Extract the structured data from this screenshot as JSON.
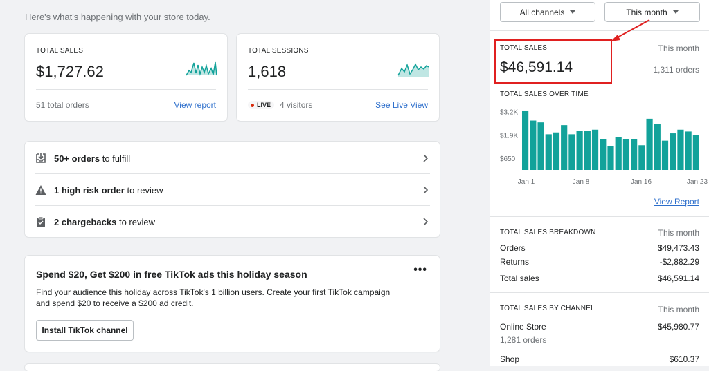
{
  "greeting": "Here's what's happening with your store today.",
  "colors": {
    "teal": "#12a29a",
    "link": "#2c6ecb",
    "highlight": "#e02020"
  },
  "cards": {
    "sales": {
      "label": "TOTAL SALES",
      "value": "$1,727.62",
      "foot": "51 total orders",
      "link": "View report"
    },
    "sessions": {
      "label": "TOTAL SESSIONS",
      "value": "1,618",
      "badge": "LIVE",
      "foot": "4 visitors",
      "link": "See Live View"
    }
  },
  "tasks": [
    {
      "icon": "download-box-icon",
      "bold": "50+ orders",
      "rest": " to fulfill"
    },
    {
      "icon": "warning-icon",
      "bold": "1 high risk order",
      "rest": " to review"
    },
    {
      "icon": "clipboard-icon",
      "bold": "2 chargebacks",
      "rest": " to review"
    }
  ],
  "promo": {
    "title": "Spend $20, Get $200 in free TikTok ads this holiday season",
    "desc": "Find your audience this holiday across TikTok's 1 billion users. Create your first TikTok campaign and spend $20 to receive a $200 ad credit.",
    "button": "Install TikTok channel",
    "more": "•••"
  },
  "panel": {
    "channels_dd": "All channels",
    "period_dd": "This month",
    "total_sales": {
      "label": "TOTAL SALES",
      "period": "This month",
      "value": "$46,591.14",
      "orders": "1,311 orders"
    },
    "over_time_label": "TOTAL SALES OVER TIME",
    "view_report": "View Report",
    "breakdown": {
      "label": "TOTAL SALES BREAKDOWN",
      "period": "This month",
      "rows": [
        {
          "name": "Orders",
          "value": "$49,473.43"
        },
        {
          "name": "Returns",
          "value": "-$2,882.29"
        },
        {
          "name": "Total sales",
          "value": "$46,591.14"
        }
      ]
    },
    "by_channel": {
      "label": "TOTAL SALES BY CHANNEL",
      "period": "This month",
      "online_store": "Online Store",
      "online_value": "$45,980.77",
      "online_orders": "1,281 orders",
      "shop": "Shop",
      "shop_value": "$610.37"
    }
  },
  "chart_data": {
    "type": "bar",
    "yticks": [
      "$3.2K",
      "$1.9K",
      "$650"
    ],
    "ytick_values": [
      3200,
      1900,
      650
    ],
    "xticks": [
      "Jan 1",
      "Jan 8",
      "Jan 16",
      "Jan 23"
    ],
    "values": [
      3250,
      2700,
      2600,
      1950,
      2050,
      2450,
      1950,
      2150,
      2150,
      2200,
      1700,
      1300,
      1800,
      1700,
      1700,
      1350,
      2800,
      2500,
      1600,
      2000,
      2200,
      2100,
      1900
    ],
    "ylim": [
      0,
      3400
    ]
  }
}
